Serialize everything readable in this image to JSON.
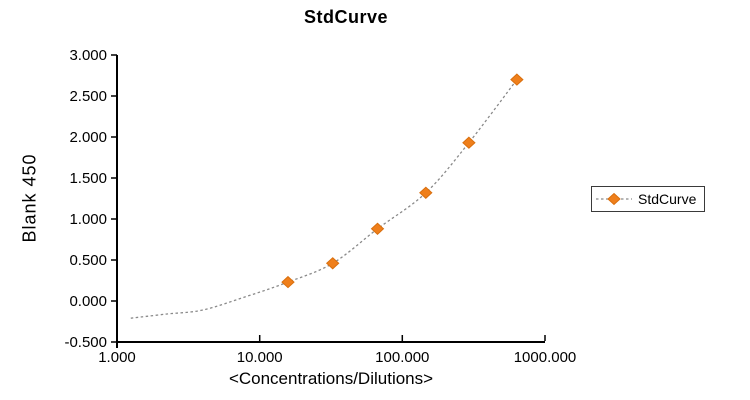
{
  "title": "StdCurve",
  "legend": {
    "label": "StdCurve"
  },
  "colors": {
    "marker_fill": "#EF7F1B",
    "marker_edge": "#D96F0E",
    "curve_line": "#8A8A8A",
    "axis": "#000000",
    "text": "#000000",
    "background": "#FFFFFF",
    "legend_border": "#3A3A3A"
  },
  "chart_data": {
    "type": "scatter",
    "title": "StdCurve",
    "xlabel": "<Concentrations/Dilutions>",
    "ylabel": "Blank 450",
    "x_scale": "log",
    "xlim": [
      1,
      1000
    ],
    "ylim": [
      -0.5,
      3.0
    ],
    "grid": false,
    "legend_position": "right-outside",
    "x_ticks": [
      {
        "v": 1,
        "label": "1.000"
      },
      {
        "v": 10,
        "label": "10.000"
      },
      {
        "v": 100,
        "label": "100.000"
      },
      {
        "v": 1000,
        "label": "1000.000"
      }
    ],
    "y_ticks": [
      {
        "v": 3.0,
        "label": "3.000"
      },
      {
        "v": 2.5,
        "label": "2.500"
      },
      {
        "v": 2.0,
        "label": "2.000"
      },
      {
        "v": 1.5,
        "label": "1.500"
      },
      {
        "v": 1.0,
        "label": "1.000"
      },
      {
        "v": 0.5,
        "label": "0.500"
      },
      {
        "v": 0.0,
        "label": "0.000"
      },
      {
        "v": -0.5,
        "label": "-0.500"
      }
    ],
    "series": [
      {
        "name": "StdCurve",
        "marker": "diamond",
        "marker_color": "#EF7F1B",
        "line_style": "dotted",
        "line_color": "#8A8A8A",
        "points": [
          {
            "x": 15.8,
            "y": 0.23
          },
          {
            "x": 32.5,
            "y": 0.46
          },
          {
            "x": 67,
            "y": 0.88
          },
          {
            "x": 146,
            "y": 1.32
          },
          {
            "x": 293,
            "y": 1.93
          },
          {
            "x": 635,
            "y": 2.7
          }
        ],
        "fit_curve_points": [
          {
            "x": 1.25,
            "y": -0.21
          },
          {
            "x": 2.2,
            "y": -0.16
          },
          {
            "x": 4.0,
            "y": -0.11
          },
          {
            "x": 7.9,
            "y": 0.05
          },
          {
            "x": 15.8,
            "y": 0.23
          },
          {
            "x": 32.5,
            "y": 0.46
          },
          {
            "x": 67,
            "y": 0.88
          },
          {
            "x": 146,
            "y": 1.32
          },
          {
            "x": 293,
            "y": 1.93
          },
          {
            "x": 635,
            "y": 2.7
          }
        ]
      }
    ]
  }
}
